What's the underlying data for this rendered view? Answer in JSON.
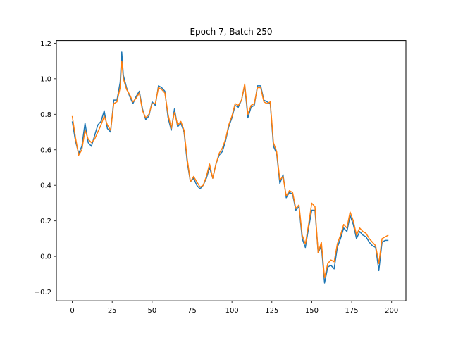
{
  "chart_data": {
    "type": "line",
    "title": "Epoch 7, Batch 250",
    "xlabel": "",
    "ylabel": "",
    "xlim": [
      -9.95,
      208.95
    ],
    "ylim": [
      -0.25,
      1.215
    ],
    "x_ticks": [
      0,
      25,
      50,
      75,
      100,
      125,
      150,
      175,
      200
    ],
    "y_ticks": [
      -0.2,
      0.0,
      0.2,
      0.4,
      0.6,
      0.8,
      1.0,
      1.2
    ],
    "grid": false,
    "legend": "none",
    "series": [
      {
        "color": "#1f77b4",
        "x": [
          0,
          2,
          4,
          6,
          8,
          10,
          12,
          14,
          16,
          18,
          20,
          22,
          24,
          26,
          28,
          30,
          31,
          32,
          34,
          36,
          38,
          40,
          42,
          44,
          46,
          48,
          50,
          52,
          54,
          56,
          58,
          60,
          62,
          64,
          66,
          68,
          70,
          72,
          74,
          76,
          78,
          80,
          82,
          84,
          86,
          88,
          90,
          92,
          94,
          96,
          98,
          100,
          102,
          104,
          106,
          108,
          110,
          112,
          114,
          116,
          118,
          120,
          122,
          124,
          126,
          128,
          130,
          132,
          134,
          136,
          138,
          140,
          142,
          144,
          146,
          148,
          150,
          152,
          154,
          156,
          158,
          160,
          162,
          164,
          166,
          168,
          170,
          172,
          174,
          176,
          178,
          180,
          182,
          184,
          186,
          188,
          190,
          192,
          194,
          196,
          198
        ],
        "y": [
          0.76,
          0.65,
          0.58,
          0.62,
          0.75,
          0.64,
          0.62,
          0.68,
          0.74,
          0.76,
          0.82,
          0.72,
          0.7,
          0.88,
          0.88,
          0.98,
          1.15,
          1.02,
          0.95,
          0.9,
          0.86,
          0.9,
          0.93,
          0.83,
          0.77,
          0.79,
          0.87,
          0.85,
          0.96,
          0.95,
          0.93,
          0.78,
          0.71,
          0.83,
          0.73,
          0.75,
          0.7,
          0.53,
          0.42,
          0.44,
          0.4,
          0.38,
          0.4,
          0.44,
          0.5,
          0.44,
          0.52,
          0.57,
          0.59,
          0.65,
          0.73,
          0.78,
          0.85,
          0.84,
          0.88,
          0.96,
          0.78,
          0.84,
          0.85,
          0.96,
          0.96,
          0.88,
          0.87,
          0.86,
          0.62,
          0.58,
          0.41,
          0.46,
          0.33,
          0.36,
          0.35,
          0.26,
          0.28,
          0.1,
          0.05,
          0.16,
          0.26,
          0.26,
          0.02,
          0.06,
          -0.15,
          -0.06,
          -0.05,
          -0.07,
          0.05,
          0.1,
          0.16,
          0.14,
          0.23,
          0.18,
          0.1,
          0.14,
          0.12,
          0.11,
          0.08,
          0.06,
          0.05,
          -0.08,
          0.08,
          0.09,
          0.09
        ]
      },
      {
        "color": "#ff7f0e",
        "x": [
          0,
          2,
          4,
          6,
          8,
          10,
          12,
          14,
          16,
          18,
          20,
          22,
          24,
          26,
          28,
          30,
          31,
          32,
          34,
          36,
          38,
          40,
          42,
          44,
          46,
          48,
          50,
          52,
          54,
          56,
          58,
          60,
          62,
          64,
          66,
          68,
          70,
          72,
          74,
          76,
          78,
          80,
          82,
          84,
          86,
          88,
          90,
          92,
          94,
          96,
          98,
          100,
          102,
          104,
          106,
          108,
          110,
          112,
          114,
          116,
          118,
          120,
          122,
          124,
          126,
          128,
          130,
          132,
          134,
          136,
          138,
          140,
          142,
          144,
          146,
          148,
          150,
          152,
          154,
          156,
          158,
          160,
          162,
          164,
          166,
          168,
          170,
          172,
          174,
          176,
          178,
          180,
          182,
          184,
          186,
          188,
          190,
          192,
          194,
          196,
          198
        ],
        "y": [
          0.79,
          0.67,
          0.57,
          0.6,
          0.71,
          0.66,
          0.64,
          0.66,
          0.7,
          0.74,
          0.79,
          0.74,
          0.71,
          0.86,
          0.87,
          0.95,
          1.1,
          1.0,
          0.94,
          0.91,
          0.87,
          0.89,
          0.92,
          0.82,
          0.78,
          0.8,
          0.86,
          0.86,
          0.95,
          0.94,
          0.92,
          0.8,
          0.72,
          0.81,
          0.74,
          0.76,
          0.71,
          0.55,
          0.42,
          0.45,
          0.42,
          0.39,
          0.4,
          0.45,
          0.52,
          0.44,
          0.52,
          0.58,
          0.61,
          0.66,
          0.74,
          0.79,
          0.86,
          0.85,
          0.88,
          0.97,
          0.8,
          0.85,
          0.86,
          0.95,
          0.95,
          0.87,
          0.86,
          0.87,
          0.64,
          0.59,
          0.43,
          0.45,
          0.34,
          0.37,
          0.36,
          0.27,
          0.29,
          0.12,
          0.07,
          0.18,
          0.3,
          0.28,
          0.02,
          0.08,
          -0.12,
          -0.04,
          -0.02,
          -0.03,
          0.07,
          0.12,
          0.18,
          0.16,
          0.25,
          0.2,
          0.12,
          0.16,
          0.14,
          0.13,
          0.1,
          0.08,
          0.06,
          -0.04,
          0.1,
          0.11,
          0.12
        ]
      }
    ]
  }
}
